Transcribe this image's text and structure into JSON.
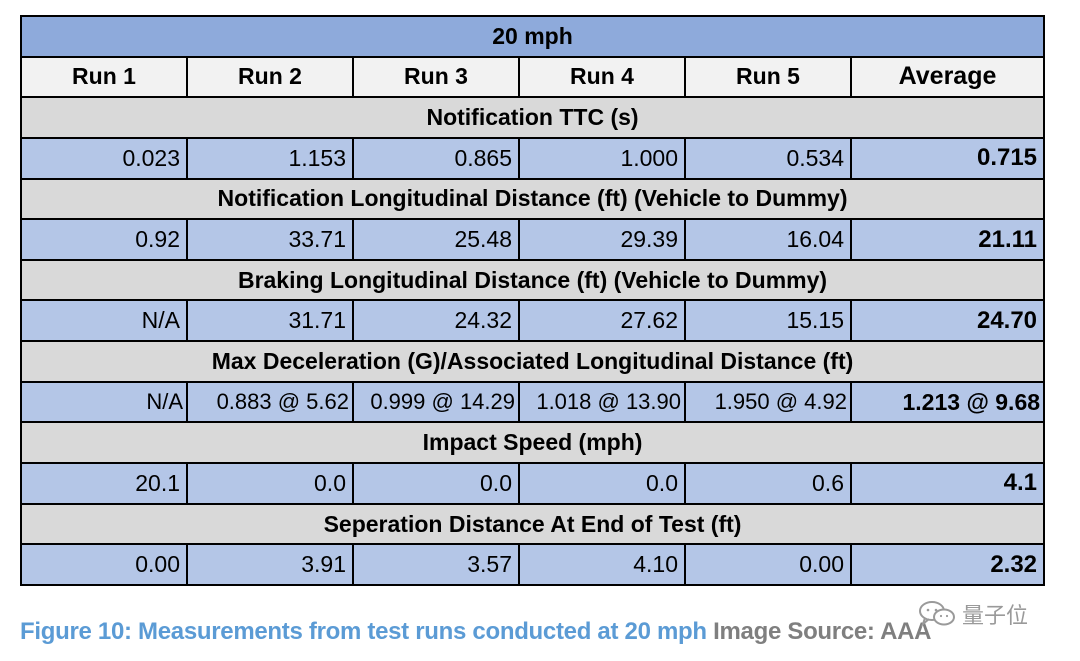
{
  "table": {
    "title": "20 mph",
    "columns": [
      "Run 1",
      "Run 2",
      "Run 3",
      "Run 4",
      "Run 5",
      "Average"
    ],
    "sections": [
      {
        "label": "Notification TTC (s)",
        "values": [
          "0.023",
          "1.153",
          "0.865",
          "1.000",
          "0.534"
        ],
        "average": "0.715"
      },
      {
        "label": "Notification Longitudinal Distance (ft) (Vehicle to Dummy)",
        "values": [
          "0.92",
          "33.71",
          "25.48",
          "29.39",
          "16.04"
        ],
        "average": "21.11"
      },
      {
        "label": "Braking Longitudinal Distance (ft) (Vehicle to Dummy)",
        "values": [
          "N/A",
          "31.71",
          "24.32",
          "27.62",
          "15.15"
        ],
        "average": "24.70"
      },
      {
        "label": "Max Deceleration (G)/Associated Longitudinal Distance (ft)",
        "values": [
          "N/A",
          "0.883 @ 5.62",
          "0.999 @ 14.29",
          "1.018 @ 13.90",
          "1.950 @ 4.92"
        ],
        "average": "1.213 @ 9.68"
      },
      {
        "label": "Impact Speed (mph)",
        "values": [
          "20.1",
          "0.0",
          "0.0",
          "0.0",
          "0.6"
        ],
        "average": "4.1"
      },
      {
        "label": "Seperation Distance At End of Test (ft)",
        "values": [
          "0.00",
          "3.91",
          "3.57",
          "4.10",
          "0.00"
        ],
        "average": "2.32"
      }
    ]
  },
  "caption": {
    "figure_text": "Figure 10: Measurements from test runs conducted at 20 mph",
    "source_text": " Image Source: AAA"
  },
  "watermark": {
    "icon": "wechat-icon",
    "text": "量子位"
  },
  "colors": {
    "title_row": "#8eaadb",
    "header_row": "#f2f2f2",
    "section_row": "#d9d9d9",
    "data_row": "#b4c6e7",
    "caption_figure": "#5b9bd5",
    "caption_source": "#7f7f7f"
  }
}
